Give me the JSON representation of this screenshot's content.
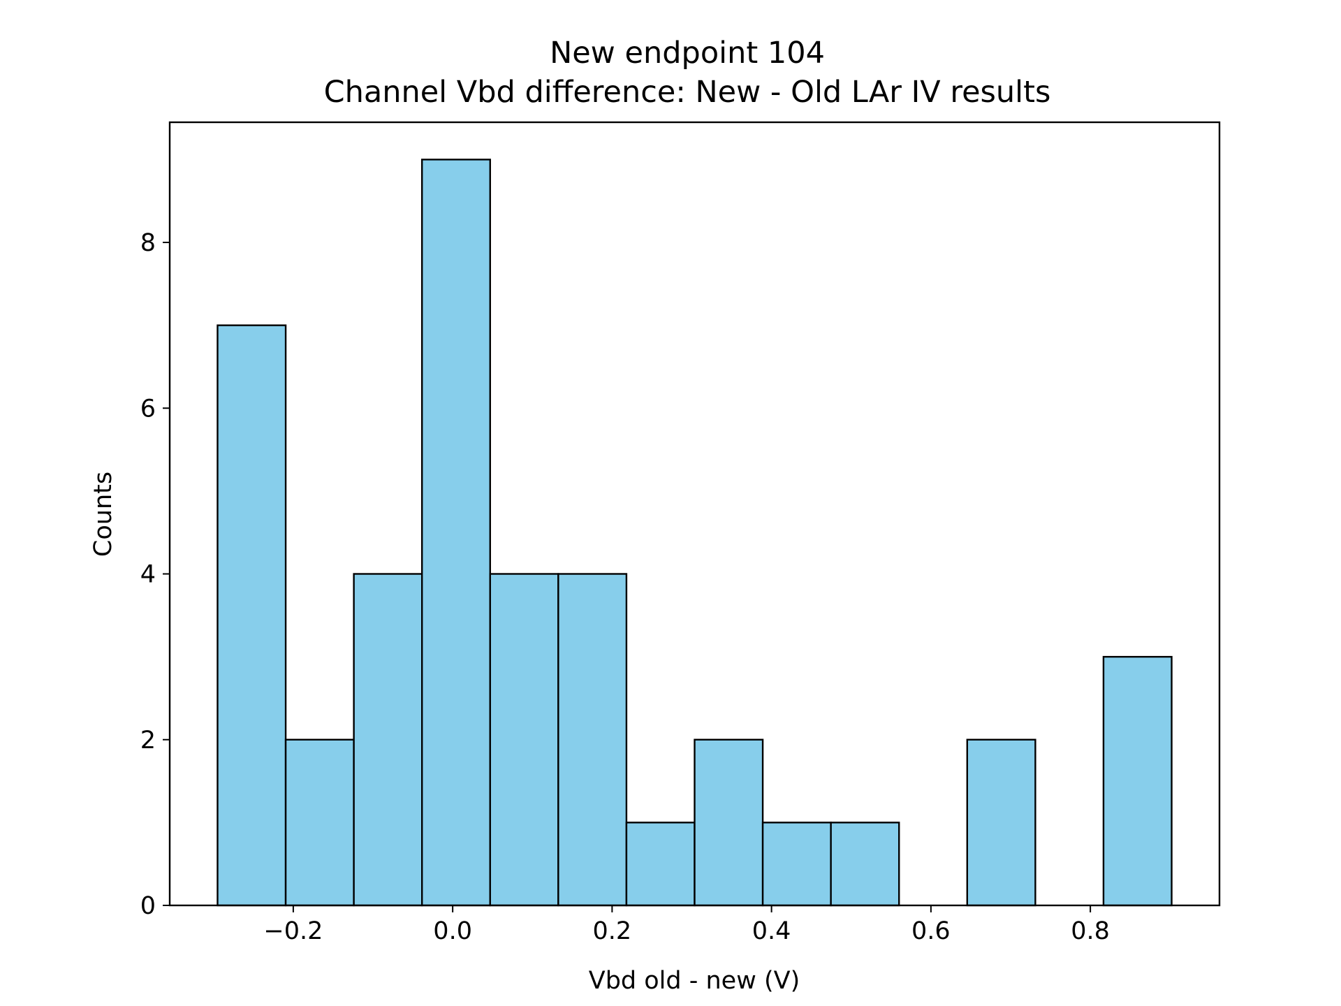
{
  "chart_data": {
    "type": "bar",
    "title": "New endpoint 104",
    "subtitle": "Channel Vbd difference: New - Old LAr IV results",
    "xlabel": "Vbd old - new (V)",
    "ylabel": "Counts",
    "bin_edges": [
      -0.295,
      -0.2095,
      -0.124,
      -0.0385,
      0.047,
      0.1325,
      0.218,
      0.3035,
      0.389,
      0.4745,
      0.56,
      0.6455,
      0.731,
      0.8165,
      0.902
    ],
    "values": [
      7,
      2,
      4,
      9,
      4,
      4,
      1,
      2,
      1,
      1,
      0,
      2,
      0,
      3
    ],
    "xlim": [
      -0.355,
      0.962
    ],
    "ylim": [
      0,
      9.45
    ],
    "xticks": [
      -0.2,
      0.0,
      0.2,
      0.4,
      0.6,
      0.8
    ],
    "xtick_labels": [
      "−0.2",
      "0.0",
      "0.2",
      "0.4",
      "0.6",
      "0.8"
    ],
    "yticks": [
      0,
      2,
      4,
      6,
      8
    ],
    "ytick_labels": [
      "0",
      "2",
      "4",
      "6",
      "8"
    ],
    "grid": false,
    "colors": {
      "bar_fill": "#87ceeb",
      "bar_edge": "#000000"
    }
  }
}
